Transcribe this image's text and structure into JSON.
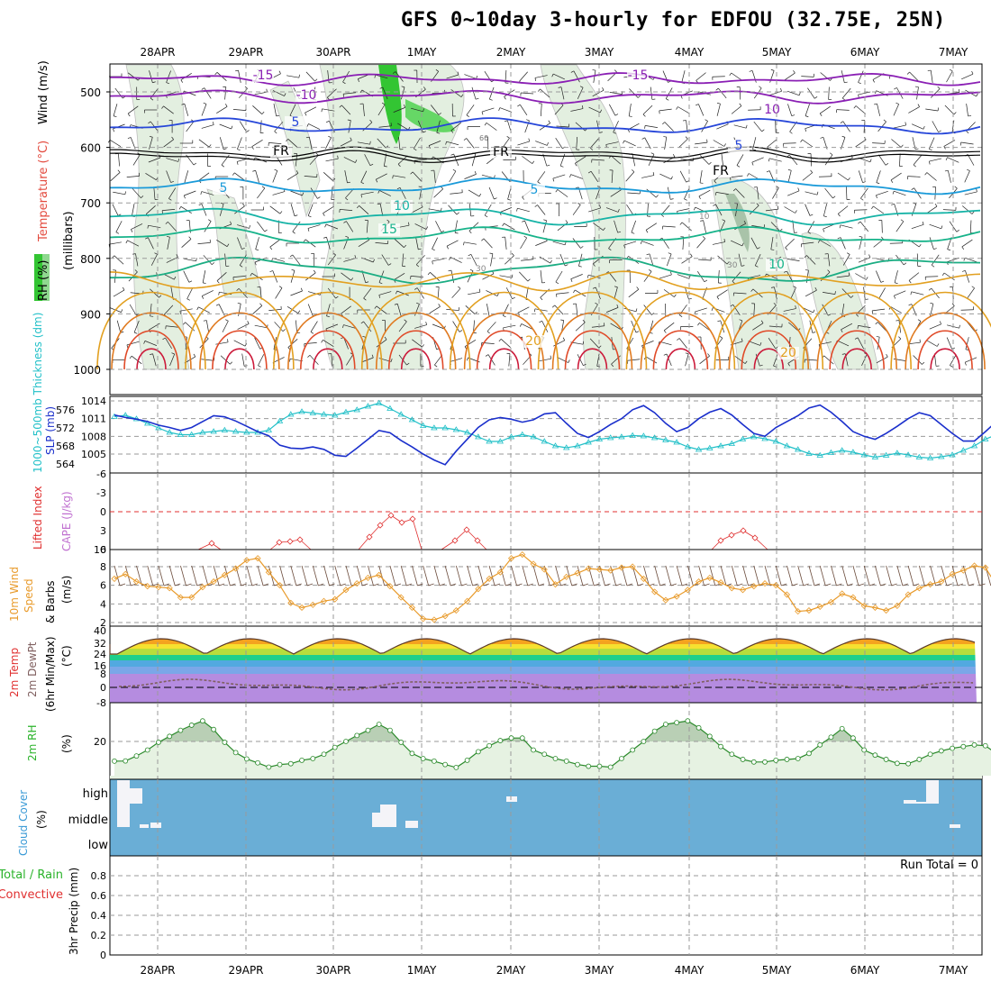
{
  "title": "GFS 0~10day 3-hourly for EDFOU (32.75E, 25N)",
  "chart_data": {
    "type": "meteogram",
    "x_dates": [
      "28APR",
      "29APR",
      "30APR",
      "1MAY",
      "2MAY",
      "3MAY",
      "4MAY",
      "5MAY",
      "6MAY",
      "7MAY"
    ],
    "panels": [
      {
        "id": "upper_air",
        "ylabel": "(millibars)",
        "legend": [
          "RH (%)",
          "Temperature (°C)",
          "Wind (m/s)"
        ],
        "y_ticks": [
          500,
          600,
          700,
          800,
          900,
          1000
        ],
        "contour_labels": [
          "-15",
          "-10",
          "-5",
          "FR",
          "5",
          "10",
          "15",
          "20",
          "30"
        ]
      },
      {
        "id": "pressure",
        "ylabel_left": "1000~500mb Thickness (dm)",
        "ylabel_right": "SLP (mb)",
        "thickness_ticks": [
          564,
          568,
          572,
          576
        ],
        "slp_ticks": [
          1005,
          1008,
          1011,
          1014
        ],
        "slp_series": [
          1011.6,
          1011.2,
          1010.9,
          1010.5,
          1009.9,
          1009.5,
          1009.0,
          1009.5,
          1010.5,
          1011.5,
          1011.3,
          1010.6,
          1009.7,
          1008.8,
          1008.1,
          1006.5,
          1006.0,
          1005.9,
          1006.2,
          1005.8,
          1004.8,
          1004.6,
          1006.0,
          1007.5,
          1009.0,
          1008.6,
          1007.3,
          1006.2,
          1005.0,
          1004.0,
          1003.2,
          1005.5,
          1007.5,
          1009.5,
          1010.8,
          1011.2,
          1010.9,
          1010.4,
          1010.8,
          1011.8,
          1012.0,
          1010.2,
          1008.5,
          1007.8,
          1008.8,
          1010.0,
          1011.0,
          1012.5,
          1013.2,
          1012.0,
          1010.2,
          1008.8,
          1009.5,
          1011.0,
          1012.1,
          1012.7,
          1011.6,
          1010.0,
          1008.5,
          1008.0,
          1009.5,
          1010.5,
          1011.5,
          1012.8,
          1013.3,
          1012.1,
          1010.5,
          1008.8,
          1008.0,
          1007.5,
          1008.5,
          1009.7,
          1011.0,
          1012.0,
          1011.5,
          1010.0,
          1008.5,
          1007.2,
          1007.2,
          1008.8,
          1010.5,
          1011.5,
          1010.5,
          1009.3,
          1008.5,
          1009.0,
          1010.0,
          1011.5,
          1013.2,
          1012.3,
          1011.0,
          1011.5,
          1011.8,
          1012.5
        ],
        "thickness_series": [
          574.5,
          574.8,
          574.0,
          573.0,
          572.0,
          571.0,
          570.5,
          570.5,
          571.0,
          571.2,
          571.5,
          571.2,
          571.0,
          571.0,
          571.5,
          573.5,
          575.0,
          575.6,
          575.3,
          575.0,
          574.8,
          575.5,
          576.0,
          576.8,
          577.5,
          576.3,
          575.0,
          573.8,
          572.5,
          572.0,
          572.0,
          571.6,
          571.0,
          570.0,
          569.0,
          569.0,
          570.0,
          570.5,
          570.0,
          569.0,
          568.0,
          567.6,
          568.0,
          568.8,
          569.5,
          569.8,
          570.0,
          570.3,
          570.2,
          569.8,
          569.3,
          568.8,
          567.8,
          567.2,
          567.5,
          568.0,
          568.5,
          569.5,
          570.0,
          569.6,
          569.0,
          568.0,
          567.2,
          566.3,
          565.9,
          566.5,
          567.0,
          566.6,
          566.0,
          565.5,
          565.9,
          566.4,
          566.0,
          565.5,
          565.3,
          565.6,
          566.0,
          567.0,
          568.0,
          569.5,
          570.5,
          570.5,
          570.0,
          569.5,
          569.0,
          570.0,
          571.0,
          572.5,
          574.0,
          574.8,
          574.5,
          574.0,
          573.5,
          573.0
        ]
      },
      {
        "id": "stability",
        "ylabel_left": "Lifted Index",
        "ylabel_right": "CAPE (J/kg)",
        "li_ticks": [
          "-6",
          "-3",
          "0",
          "3",
          "6"
        ],
        "cape_label": "10"
      },
      {
        "id": "wind10m",
        "ylabel": "10m Wind Speed & Barbs (m/s)",
        "ticks": [
          2,
          4,
          6,
          8
        ],
        "speed_series": [
          6.7,
          7.2,
          6.4,
          5.9,
          5.8,
          5.7,
          4.7,
          4.7,
          5.8,
          6.4,
          7.1,
          7.8,
          8.7,
          8.9,
          7.4,
          6.0,
          4.1,
          3.6,
          3.9,
          4.3,
          4.5,
          5.5,
          6.2,
          6.8,
          7.1,
          5.9,
          4.7,
          3.6,
          2.4,
          2.3,
          2.7,
          3.3,
          4.3,
          5.6,
          6.7,
          7.4,
          8.9,
          9.3,
          8.3,
          7.7,
          6.1,
          6.9,
          7.3,
          7.8,
          7.7,
          7.6,
          7.9,
          8.0,
          6.7,
          5.3,
          4.4,
          4.8,
          5.5,
          6.4,
          6.8,
          6.3,
          5.7,
          5.5,
          5.9,
          6.2,
          6.0,
          5.0,
          3.2,
          3.3,
          3.7,
          4.2,
          5.1,
          4.7,
          3.8,
          3.6,
          3.3,
          3.8,
          5.0,
          5.7,
          6.1,
          6.4,
          7.2,
          7.6,
          8.1,
          7.9,
          6.0,
          5.7,
          5.0,
          5.3,
          6.2,
          7.4,
          6.7,
          5.3,
          4.6,
          4.6,
          4.2,
          3.9,
          4.1,
          4.0
        ]
      },
      {
        "id": "temp2m",
        "ylabel": "2m Temp 2m DewPt (6hr Min/Max) (°C)",
        "ticks": [
          "-8",
          "0",
          "8",
          "16",
          "24",
          "32",
          "40"
        ]
      },
      {
        "id": "rh2m",
        "ylabel": "2m RH (%)",
        "ticks": [
          20
        ],
        "rh_series": [
          8.5,
          8.6,
          11.5,
          15.0,
          19.5,
          23.0,
          26.5,
          29.5,
          32.0,
          27.0,
          19.5,
          13.5,
          9.8,
          7.5,
          5.0,
          6.5,
          7.0,
          9.0,
          10.0,
          12.5,
          16.5,
          20.0,
          23.5,
          26.5,
          30.0,
          26.5,
          19.5,
          13.0,
          10.0,
          8.5,
          6.5,
          4.8,
          9.0,
          14.0,
          17.5,
          20.5,
          22.0,
          22.0,
          15.0,
          12.5,
          10.0,
          8.5,
          6.5,
          5.5,
          5.5,
          5.0,
          10.0,
          15.0,
          20.0,
          26.0,
          30.0,
          31.0,
          32.0,
          28.0,
          23.0,
          17.0,
          12.5,
          9.5,
          8.0,
          8.0,
          9.0,
          9.5,
          10.0,
          13.0,
          18.0,
          22.5,
          27.5,
          22.0,
          15.0,
          12.0,
          9.5,
          7.2,
          7.0,
          9.5,
          12.5,
          14.5,
          16.0,
          17.0,
          18.0,
          17.5,
          13.0,
          8.5,
          6.0,
          4.0,
          5.5,
          4.8,
          7.0,
          10.0,
          13.5,
          17.5,
          21.0,
          24.0,
          26.5,
          21.0
        ]
      },
      {
        "id": "cloud",
        "ylabel": "Cloud Cover (%)",
        "levels": [
          "high",
          "middle",
          "low"
        ]
      },
      {
        "id": "precip",
        "ylabel_left": "3hr Precip (mm)",
        "legend": [
          "Total / Rain",
          "Convective"
        ],
        "ticks": [
          "0",
          "0.2",
          "0.4",
          "0.6",
          "0.8"
        ],
        "run_total": "Run Total = 0"
      }
    ]
  }
}
